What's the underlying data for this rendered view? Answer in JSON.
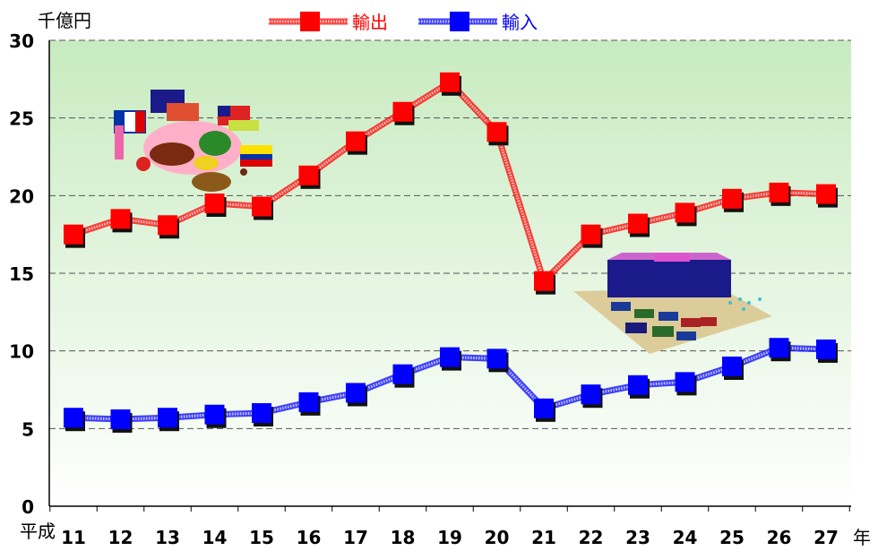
{
  "chart_data": {
    "type": "line",
    "unit_label": "千億円",
    "x_prefix": "平成",
    "x_suffix": "年",
    "categories": [
      "11",
      "12",
      "13",
      "14",
      "15",
      "16",
      "17",
      "18",
      "19",
      "20",
      "21",
      "22",
      "23",
      "24",
      "25",
      "26",
      "27"
    ],
    "y_ticks": [
      "0",
      "5",
      "10",
      "15",
      "20",
      "25",
      "30"
    ],
    "ylim": [
      0,
      30
    ],
    "grid": true,
    "legend_position": "top",
    "series": [
      {
        "name": "輸出",
        "color": "#ff0000",
        "values": [
          17.5,
          18.5,
          18.1,
          19.5,
          19.3,
          21.3,
          23.5,
          25.4,
          27.3,
          24.1,
          14.5,
          17.5,
          18.2,
          18.9,
          19.8,
          20.2,
          20.1
        ]
      },
      {
        "name": "輸入",
        "color": "#0000ff",
        "values": [
          5.7,
          5.6,
          5.7,
          5.9,
          6.0,
          6.7,
          7.3,
          8.5,
          9.6,
          9.5,
          6.3,
          7.2,
          7.8,
          8.0,
          9.0,
          10.2,
          10.1
        ]
      }
    ]
  }
}
